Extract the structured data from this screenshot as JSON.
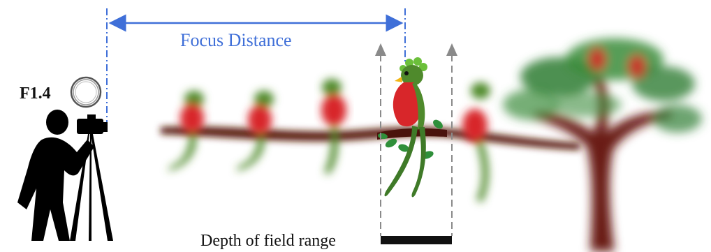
{
  "diagram": {
    "aperture_label": "F1.4",
    "focus_distance_label": "Focus Distance",
    "depth_of_field_label": "Depth of field range"
  },
  "colors": {
    "focus_arrow": "#3f6fd8",
    "dof_lines": "#8a8a8a",
    "dof_bar": "#111111",
    "branch": "#5a1a10",
    "leaf": "#2f8f3a",
    "bird_red": "#d8262a",
    "bird_green": "#4f8a2c",
    "silhouette": "#000000"
  },
  "icons": {
    "photographer": "photographer-icon",
    "aperture": "aperture-ring-icon",
    "bird": "quetzal-bird-icon",
    "tree": "tree-icon"
  }
}
